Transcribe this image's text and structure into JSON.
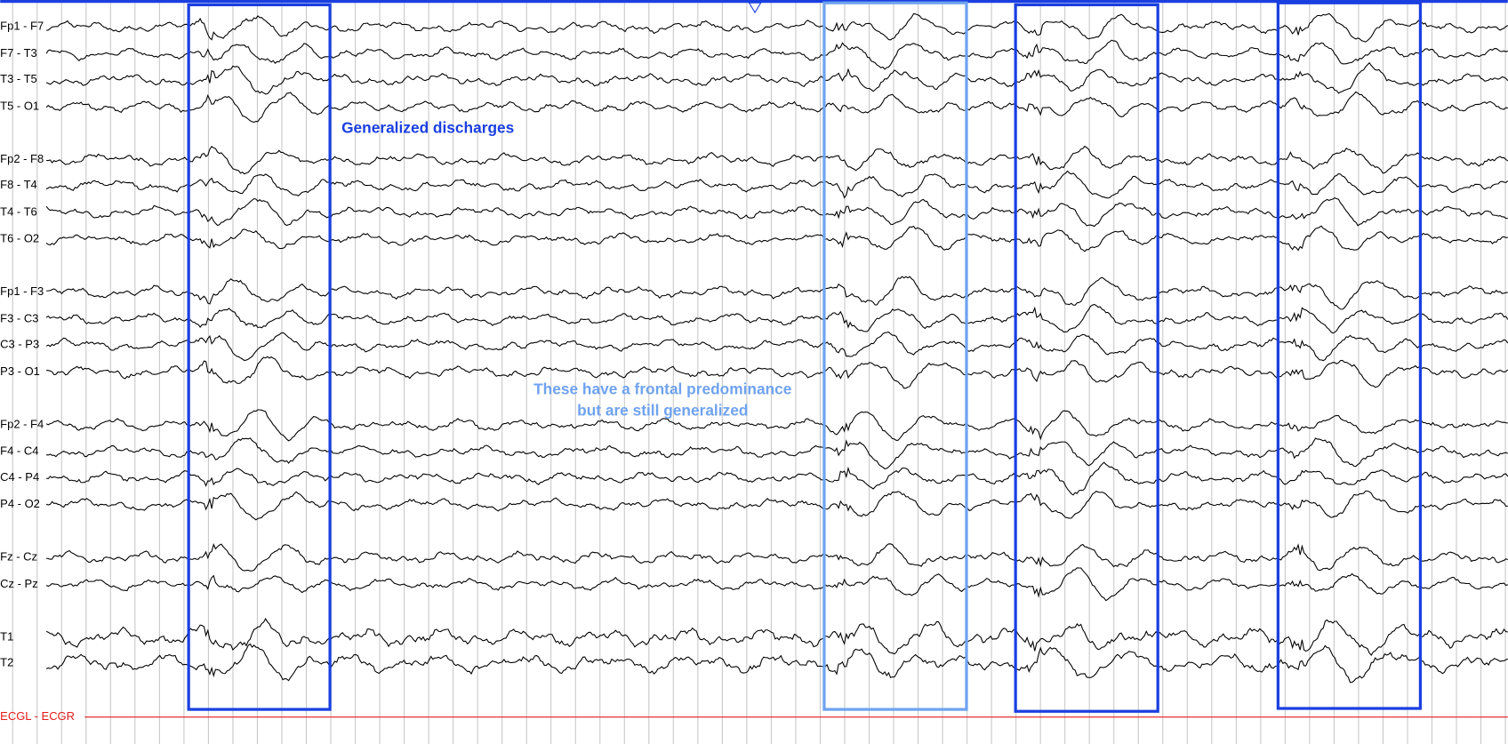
{
  "channels": [
    "Fp1 - F7",
    "F7 - T3",
    "T3 - T5",
    "T5 - O1",
    "Fp2 - F8",
    "F8 - T4",
    "T4 - T6",
    "T6 - O2",
    "Fp1 - F3",
    "F3 - C3",
    "C3 - P3",
    "P3 - O1",
    "Fp2 - F4",
    "F4 - C4",
    "C4 - P4",
    "P4 - O2",
    "Fz - Cz",
    "Cz - Pz",
    "T1",
    "T2"
  ],
  "ecg_channel": "ECGL - ECGR",
  "annotations": {
    "generalized": "Generalized discharges",
    "frontal": [
      "These have a frontal predominance",
      "but are still generalized"
    ]
  }
}
